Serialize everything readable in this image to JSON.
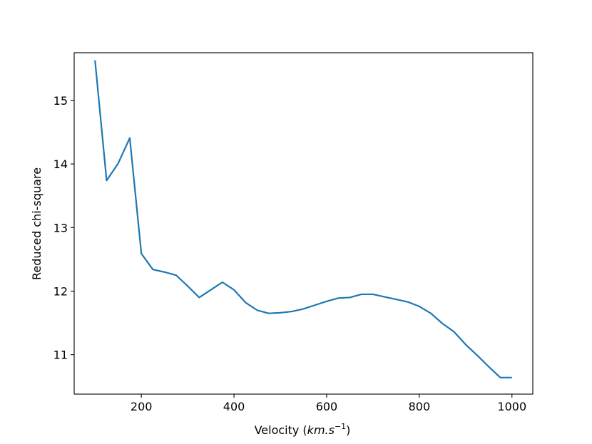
{
  "chart_data": {
    "type": "line",
    "xlabel": "Velocity (",
    "xlabel_math": "km.s",
    "xlabel_sup": "−1",
    "xlabel_close": ")",
    "ylabel": "Reduced chi-square",
    "xlim": [
      55,
      1045
    ],
    "ylim": [
      10.38,
      15.75
    ],
    "x_ticks": [
      200,
      400,
      600,
      800,
      1000
    ],
    "y_ticks": [
      11,
      12,
      13,
      14,
      15
    ],
    "x_tick_labels": [
      "200",
      "400",
      "600",
      "800",
      "1000"
    ],
    "y_tick_labels": [
      "11",
      "12",
      "13",
      "14",
      "15"
    ],
    "grid": false,
    "line_color": "#1f77b4",
    "series": [
      {
        "x": [
          100,
          125,
          150,
          175,
          200,
          225,
          250,
          275,
          300,
          325,
          350,
          375,
          400,
          425,
          450,
          475,
          500,
          525,
          550,
          575,
          600,
          625,
          650,
          675,
          700,
          725,
          750,
          775,
          800,
          825,
          850,
          875,
          900,
          925,
          950,
          975,
          1000
        ],
        "y": [
          15.63,
          13.74,
          14.01,
          14.41,
          12.59,
          12.34,
          12.3,
          12.25,
          12.08,
          11.9,
          12.02,
          12.14,
          12.02,
          11.82,
          11.7,
          11.65,
          11.66,
          11.68,
          11.72,
          11.78,
          11.84,
          11.89,
          11.9,
          11.95,
          11.95,
          11.91,
          11.87,
          11.83,
          11.76,
          11.65,
          11.49,
          11.36,
          11.16,
          10.99,
          10.81,
          10.64,
          10.64
        ]
      }
    ]
  }
}
